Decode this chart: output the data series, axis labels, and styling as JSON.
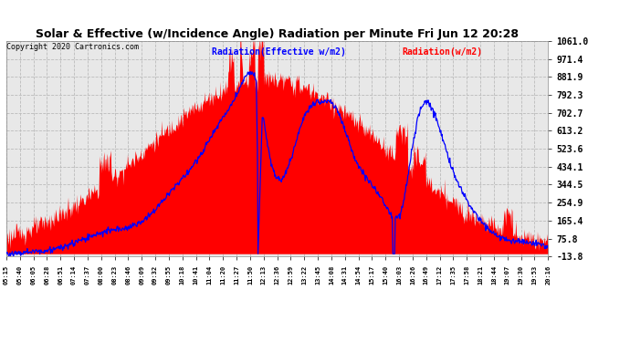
{
  "title": "Solar & Effective (w/Incidence Angle) Radiation per Minute Fri Jun 12 20:28",
  "copyright": "Copyright 2020 Cartronics.com",
  "legend_blue": "Radiation(Effective w/m2)",
  "legend_red": "Radiation(w/m2)",
  "yticks": [
    1061.0,
    971.4,
    881.9,
    792.3,
    702.7,
    613.2,
    523.6,
    434.1,
    344.5,
    254.9,
    165.4,
    75.8,
    -13.8
  ],
  "ymin": -13.8,
  "ymax": 1061.0,
  "bg_color": "#ffffff",
  "plot_bg": "#e8e8e8",
  "title_color": "#000000",
  "grid_color": "#aaaaaa",
  "red_color": "#ff0000",
  "blue_color": "#0000ff",
  "xtick_labels": [
    "05:15",
    "05:40",
    "06:05",
    "06:28",
    "06:51",
    "07:14",
    "07:37",
    "08:00",
    "08:23",
    "08:46",
    "09:09",
    "09:32",
    "09:55",
    "10:18",
    "10:41",
    "11:04",
    "11:20",
    "11:27",
    "11:50",
    "12:13",
    "12:36",
    "12:59",
    "13:22",
    "13:45",
    "14:08",
    "14:31",
    "14:54",
    "15:17",
    "15:40",
    "16:03",
    "16:26",
    "16:49",
    "17:12",
    "17:35",
    "17:58",
    "18:21",
    "18:44",
    "19:07",
    "19:30",
    "19:53",
    "20:16"
  ]
}
